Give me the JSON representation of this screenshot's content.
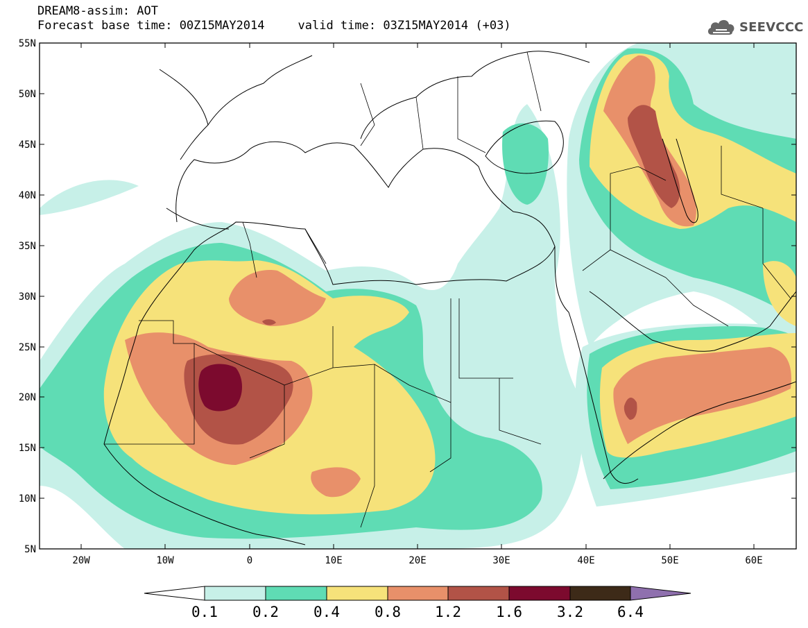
{
  "header": {
    "line1": "DREAM8-assim: AOT",
    "base_time": "Forecast base time: 00Z15MAY2014",
    "valid_time": "valid time: 03Z15MAY2014 (+03)"
  },
  "logo": {
    "text": "SEEVCCC",
    "icon": "cloud-icon"
  },
  "map": {
    "latitude_labels": [
      "55N",
      "50N",
      "45N",
      "40N",
      "35N",
      "30N",
      "25N",
      "20N",
      "15N",
      "10N",
      "5N"
    ],
    "longitude_labels": [
      "20W",
      "10W",
      "0",
      "10E",
      "20E",
      "30E",
      "40E",
      "50E",
      "60E"
    ],
    "lon_range": [
      -25,
      65
    ],
    "lat_range": [
      5,
      55
    ]
  },
  "colorbar": {
    "labels": [
      "0.1",
      "0.2",
      "0.4",
      "0.8",
      "1.2",
      "1.6",
      "3.2",
      "6.4"
    ],
    "colors": [
      "#ffffff",
      "#c7f0e8",
      "#5fdcb4",
      "#f6e27a",
      "#e8906a",
      "#b25347",
      "#7c0a2e",
      "#3d2a18",
      "#8f70ae"
    ]
  }
}
